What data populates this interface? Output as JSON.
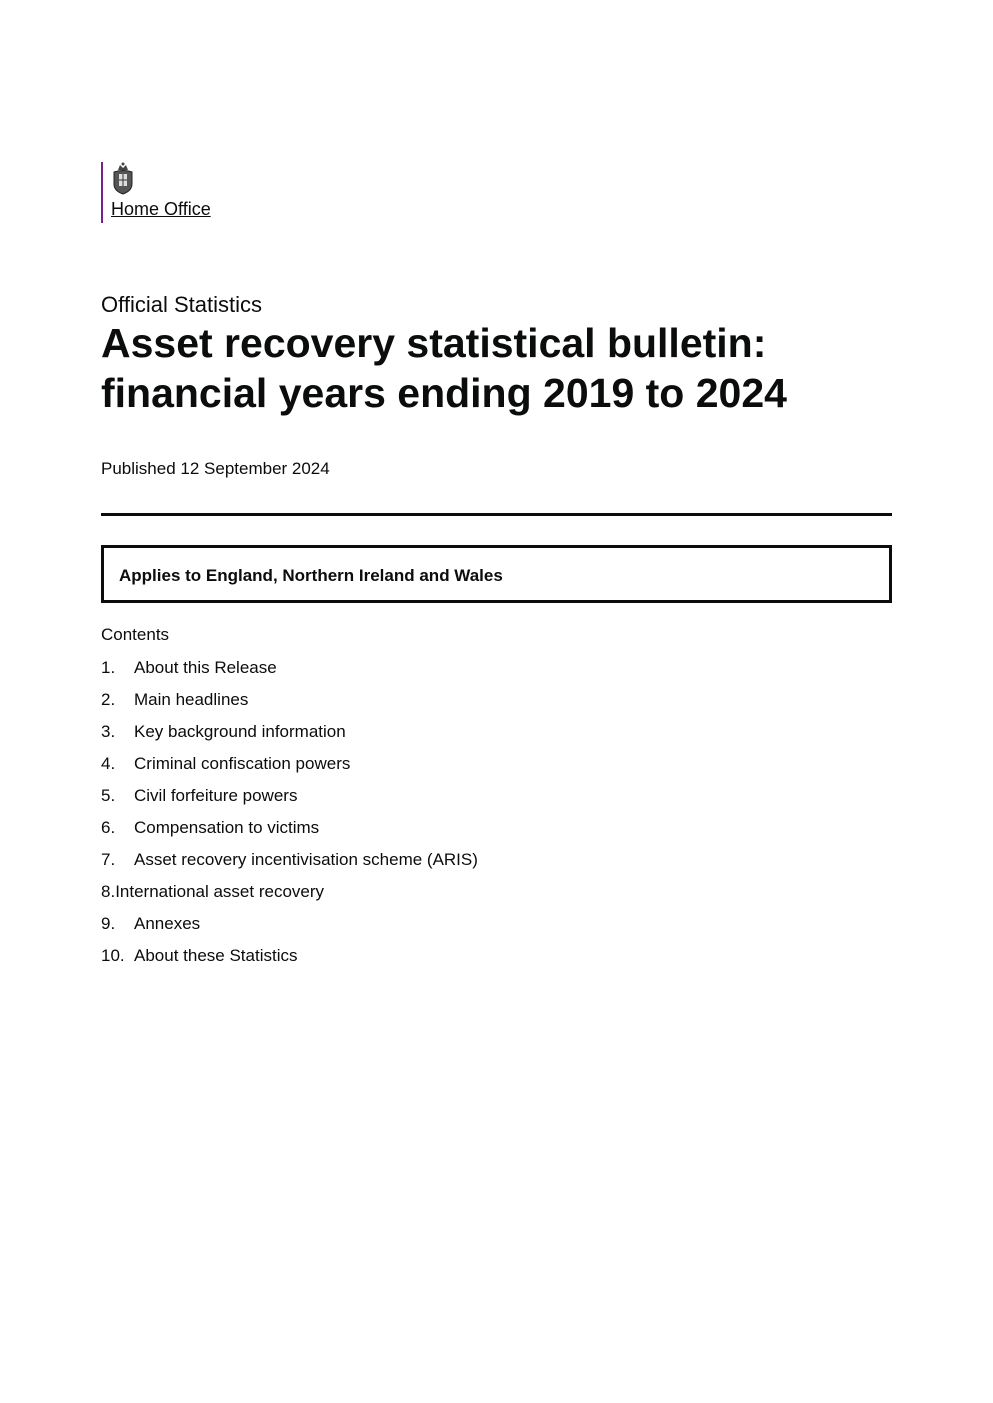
{
  "header": {
    "organisation": "Home Office",
    "brand_color": "#7a1f8c",
    "logo_icon": "royal-coat-of-arms-icon"
  },
  "document": {
    "kicker": "Official Statistics",
    "title_line1": "Asset recovery statistical bulletin:",
    "title_line2": "financial years ending 2019 to 2024",
    "published": "Published 12 September 2024",
    "applies_to": "Applies to England, Northern Ireland and Wales"
  },
  "contents": {
    "heading": "Contents",
    "items": [
      {
        "num": "1.",
        "label": "About this Release"
      },
      {
        "num": "2.",
        "label": "Main headlines"
      },
      {
        "num": "3.",
        "label": "Key background information"
      },
      {
        "num": "4.",
        "label": "Criminal confiscation powers"
      },
      {
        "num": "5.",
        "label": "Civil forfeiture powers"
      },
      {
        "num": "6.",
        "label": "Compensation to victims"
      },
      {
        "num": "7.",
        "label": "Asset recovery incentivisation scheme (ARIS)"
      },
      {
        "num": "8.",
        "label": "International asset recovery"
      },
      {
        "num": "9.",
        "label": "Annexes"
      },
      {
        "num": "10.",
        "label": "About these Statistics"
      }
    ]
  }
}
